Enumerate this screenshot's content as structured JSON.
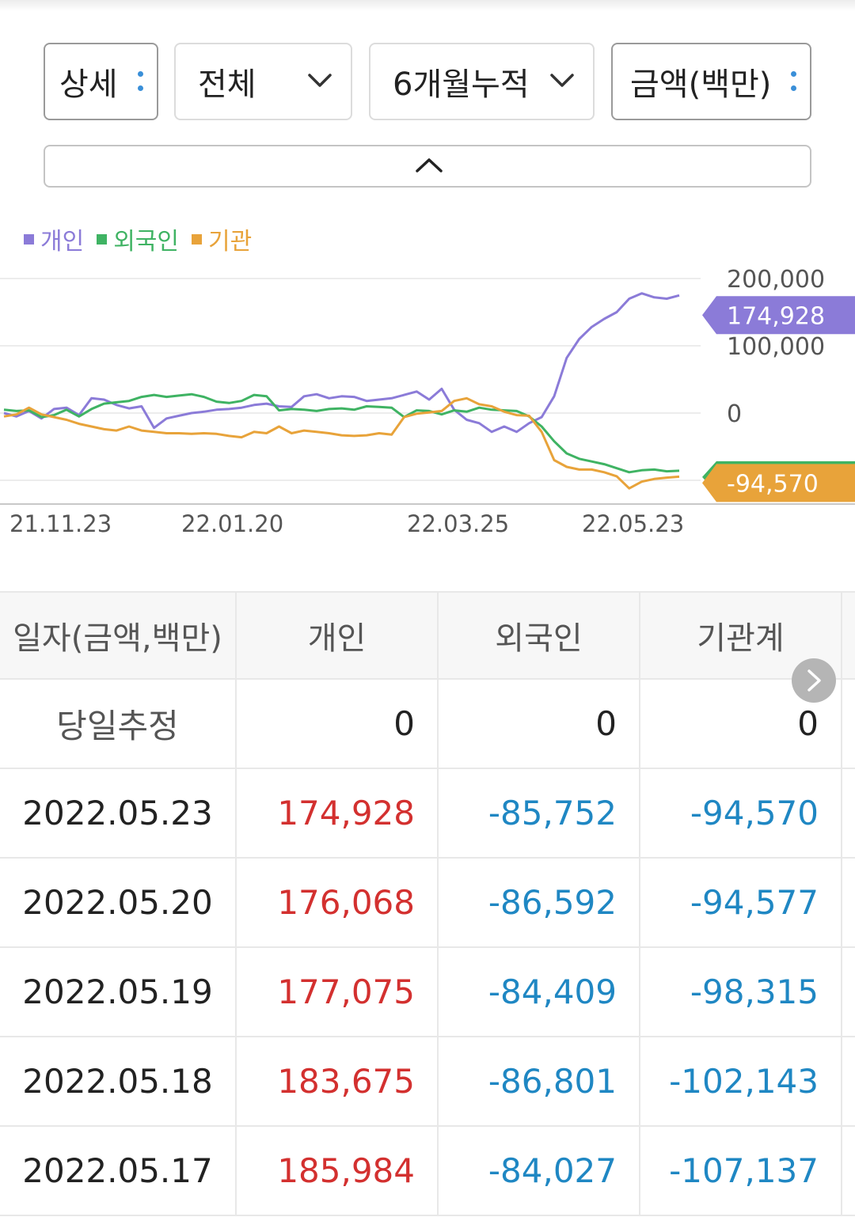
{
  "controls": {
    "detail_label": "상세",
    "scope_label": "전체",
    "period_label": "6개월누적",
    "unit_label": "금액(백만)"
  },
  "icons": {
    "kebab": "kebab-icon",
    "chevron_down": "chevron-down-icon",
    "chevron_up": "chevron-up-icon",
    "chevron_right": "chevron-right-icon"
  },
  "legend": [
    {
      "name": "개인",
      "color": "#8b7bd8"
    },
    {
      "name": "외국인",
      "color": "#3fb363"
    },
    {
      "name": "기관",
      "color": "#e8a33a"
    }
  ],
  "chart_data": {
    "type": "line",
    "x_tick_labels": [
      "21.11.23",
      "22.01.20",
      "22.03.25",
      "22.05.23"
    ],
    "y_tick_labels": [
      "200,000",
      "100,000",
      "0"
    ],
    "ylim": [
      -100000,
      200000
    ],
    "grid": true,
    "legend_position": "top-left",
    "value_tags": [
      {
        "series": "개인",
        "label": "174,928",
        "color": "#8b7bd8"
      },
      {
        "series": "기관",
        "label": "-94,570",
        "color": "#e8a33a"
      }
    ],
    "series": [
      {
        "name": "개인",
        "color": "#8b7bd8",
        "values": [
          0,
          -5000,
          3000,
          -8000,
          6000,
          8000,
          -3000,
          22000,
          20000,
          12000,
          7000,
          10000,
          -22000,
          -8000,
          -4000,
          0,
          2000,
          5000,
          6000,
          8000,
          12000,
          14000,
          10000,
          9000,
          25000,
          28000,
          22000,
          25000,
          24000,
          18000,
          20000,
          22000,
          27000,
          32000,
          20000,
          36000,
          5000,
          -10000,
          -15000,
          -28000,
          -20000,
          -28000,
          -15000,
          -6000,
          25000,
          82000,
          110000,
          128000,
          140000,
          150000,
          170000,
          178000,
          172000,
          170000,
          174928
        ]
      },
      {
        "name": "외국인",
        "color": "#3fb363",
        "values": [
          5000,
          3000,
          4000,
          -6000,
          -3000,
          5000,
          -5000,
          6000,
          14000,
          16000,
          18000,
          24000,
          27000,
          24000,
          26000,
          28000,
          24000,
          17000,
          15000,
          18000,
          27000,
          25000,
          4000,
          6000,
          5000,
          3000,
          6000,
          7000,
          5000,
          10000,
          9000,
          8000,
          -6000,
          4000,
          3000,
          -2000,
          4000,
          2000,
          8000,
          5000,
          4000,
          3000,
          -5000,
          -20000,
          -42000,
          -60000,
          -68000,
          -72000,
          -76000,
          -82000,
          -88000,
          -85000,
          -84000,
          -86592,
          -85752
        ]
      },
      {
        "name": "기관",
        "color": "#e8a33a",
        "values": [
          -5000,
          -2000,
          8000,
          -2000,
          -6000,
          -10000,
          -16000,
          -20000,
          -24000,
          -26000,
          -20000,
          -26000,
          -28000,
          -30000,
          -30000,
          -31000,
          -30000,
          -31000,
          -34000,
          -36000,
          -28000,
          -30000,
          -20000,
          -30000,
          -26000,
          -28000,
          -30000,
          -33000,
          -34000,
          -33000,
          -30000,
          -32000,
          -6000,
          -1000,
          1000,
          3000,
          18000,
          22000,
          13000,
          10000,
          2000,
          -3000,
          -4000,
          -28000,
          -70000,
          -80000,
          -84000,
          -84000,
          -88000,
          -94000,
          -112000,
          -102000,
          -98000,
          -96000,
          -94570
        ]
      }
    ]
  },
  "table": {
    "headers": [
      "일자(금액,백만)",
      "개인",
      "외국인",
      "기관계"
    ],
    "rows": [
      {
        "date": "당일추정",
        "individual": "0",
        "foreign": "0",
        "institution": "0"
      },
      {
        "date": "2022.05.23",
        "individual": "174,928",
        "foreign": "-85,752",
        "institution": "-94,570"
      },
      {
        "date": "2022.05.20",
        "individual": "176,068",
        "foreign": "-86,592",
        "institution": "-94,577"
      },
      {
        "date": "2022.05.19",
        "individual": "177,075",
        "foreign": "-84,409",
        "institution": "-98,315"
      },
      {
        "date": "2022.05.18",
        "individual": "183,675",
        "foreign": "-86,801",
        "institution": "-102,143"
      },
      {
        "date": "2022.05.17",
        "individual": "185,984",
        "foreign": "-84,027",
        "institution": "-107,137"
      }
    ]
  }
}
